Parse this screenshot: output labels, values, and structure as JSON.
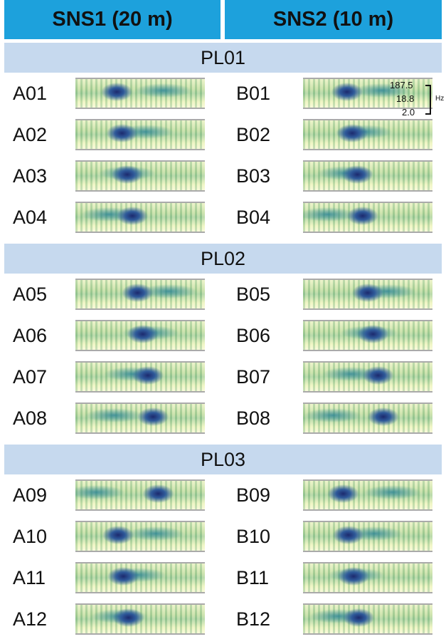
{
  "header": {
    "left": "SNS1 (20 m)",
    "right": "SNS2 (10 m)"
  },
  "scale": {
    "top": "187.5",
    "middle": "18.8",
    "bottom": "2.0",
    "unit": "Hz"
  },
  "sections": [
    {
      "title": "PL01",
      "left": [
        "A01",
        "A02",
        "A03",
        "A04"
      ],
      "right": [
        "B01",
        "B02",
        "B03",
        "B04"
      ]
    },
    {
      "title": "PL02",
      "left": [
        "A05",
        "A06",
        "A07",
        "A08"
      ],
      "right": [
        "B05",
        "B06",
        "B07",
        "B08"
      ]
    },
    {
      "title": "PL03",
      "left": [
        "A09",
        "A10",
        "A11",
        "A12"
      ],
      "right": [
        "B09",
        "B10",
        "B11",
        "B12"
      ]
    }
  ]
}
